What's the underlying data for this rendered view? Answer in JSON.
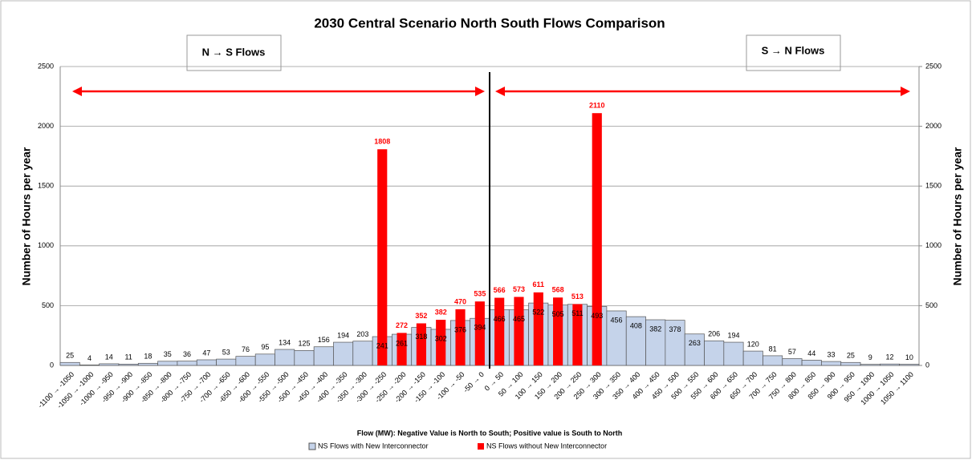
{
  "chart_data": {
    "type": "bar",
    "title": "2030 Central Scenario North South Flows Comparison",
    "x_label": "Flow (MW): Negative Value is North to South; Positive value is South to North",
    "y_label": "Number of Hours per year",
    "y2_label": "Number of Hours per year",
    "annotations": [
      "N → S Flows",
      "S → N Flows"
    ],
    "categories": [
      "-1100 → -1050",
      "-1050 → -1000",
      "-1000 → -950",
      "-950 → -900",
      "-900 → -850",
      "-850 → -800",
      "-800 → -750",
      "-750 → -700",
      "-700 → -650",
      "-650 → -600",
      "-600 → -550",
      "-550 → -500",
      "-500 → -450",
      "-450 → -400",
      "-400 → -350",
      "-350 → -300",
      "-300 → -250",
      "-250 → -200",
      "-200 → -150",
      "-150 → -100",
      "-100 → -50",
      "-50 → 0",
      "0 → 50",
      "50 → 100",
      "100 → 150",
      "150 → 200",
      "200 → 250",
      "250 → 300",
      "300 → 350",
      "350 → 400",
      "400 → 450",
      "450 → 500",
      "500 → 550",
      "550 → 600",
      "600 → 650",
      "650 → 700",
      "700 → 750",
      "750 → 800",
      "800 → 850",
      "850 → 900",
      "900 → 950",
      "950 → 1000",
      "1000 → 1050",
      "1050 → 1100"
    ],
    "series": [
      {
        "name": "NS Flows with New Interconnector",
        "color": "#c5d3ea",
        "values": [
          25,
          4,
          14,
          11,
          18,
          35,
          36,
          47,
          53,
          76,
          95,
          134,
          125,
          156,
          194,
          203,
          241,
          261,
          318,
          302,
          376,
          394,
          466,
          465,
          522,
          505,
          511,
          493,
          456,
          408,
          382,
          378,
          263,
          206,
          194,
          120,
          81,
          57,
          44,
          33,
          25,
          9,
          12,
          10
        ]
      },
      {
        "name": "NS Flows without New Interconnector",
        "color": "#ff0000",
        "values": [
          null,
          null,
          null,
          null,
          null,
          null,
          null,
          null,
          null,
          null,
          null,
          null,
          null,
          null,
          null,
          null,
          1808,
          272,
          352,
          382,
          470,
          535,
          566,
          573,
          611,
          568,
          513,
          2110,
          null,
          null,
          null,
          null,
          null,
          null,
          null,
          null,
          null,
          null,
          null,
          null,
          null,
          null,
          null,
          null
        ]
      }
    ],
    "ylim": [
      0,
      2500
    ],
    "yticks": [
      0,
      500,
      1000,
      1500,
      2000,
      2500
    ],
    "y2lim": [
      0,
      2500
    ],
    "y2ticks": [
      0,
      500,
      1000,
      1500,
      2000,
      2500
    ],
    "grid": true,
    "legend": "bottom"
  }
}
